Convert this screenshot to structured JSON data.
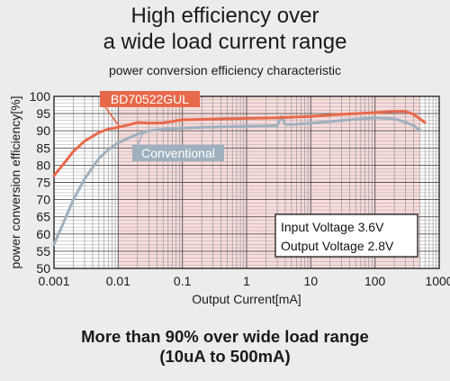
{
  "header": {
    "title_line1": "High efficiency over",
    "title_line2": "a wide load current range",
    "subtitle": "power conversion efficiency characteristic"
  },
  "footer": {
    "line1": "More than 90% over wide load range",
    "line2": "(10uA to 500mA)"
  },
  "chart_data": {
    "type": "line",
    "xlabel": "Output Current[mA]",
    "ylabel": "power conversion efficiency[%]",
    "xscale": "log",
    "xlim": [
      0.001,
      1000
    ],
    "ylim": [
      50,
      100
    ],
    "x_ticks": [
      0.001,
      0.01,
      0.1,
      1,
      10,
      100,
      1000
    ],
    "x_tick_labels": [
      "0.001",
      "0.01",
      "0.1",
      "1",
      "10",
      "100",
      "1000"
    ],
    "y_ticks": [
      50,
      55,
      60,
      65,
      70,
      75,
      80,
      85,
      90,
      95,
      100
    ],
    "grid": true,
    "highlight_band": {
      "xmin": 0.01,
      "xmax": 500,
      "color": "#f9dcdc"
    },
    "series": [
      {
        "name": "BD70522GUL",
        "color": "#e8684a",
        "x": [
          0.001,
          0.0015,
          0.002,
          0.003,
          0.005,
          0.007,
          0.01,
          0.015,
          0.02,
          0.03,
          0.05,
          0.1,
          0.3,
          1,
          3,
          10,
          30,
          100,
          200,
          300,
          400,
          600
        ],
        "y": [
          77,
          81,
          84,
          87,
          89.5,
          90.5,
          91,
          91.8,
          92.4,
          92.2,
          92.3,
          93.2,
          93.4,
          93.6,
          93.8,
          94.2,
          94.8,
          95.3,
          95.6,
          95.6,
          94.8,
          92.4
        ]
      },
      {
        "name": "Conventional",
        "color": "#9fb0be",
        "x": [
          0.001,
          0.0015,
          0.002,
          0.003,
          0.005,
          0.007,
          0.01,
          0.015,
          0.02,
          0.03,
          0.05,
          0.1,
          0.2,
          0.5,
          1,
          2,
          3,
          3.5,
          4,
          5,
          10,
          30,
          100,
          200,
          300,
          400,
          500
        ],
        "y": [
          57,
          64.5,
          70,
          76,
          82,
          84.5,
          86.5,
          88,
          89,
          90,
          90.5,
          90.8,
          91,
          91.2,
          91.3,
          91.4,
          91.5,
          94.2,
          91.8,
          91.8,
          92.2,
          93,
          93.8,
          93.5,
          92.5,
          91.5,
          90.2
        ]
      }
    ],
    "annotations": [
      "Input Voltage 3.6V",
      "Output Voltage 2.8V"
    ]
  }
}
